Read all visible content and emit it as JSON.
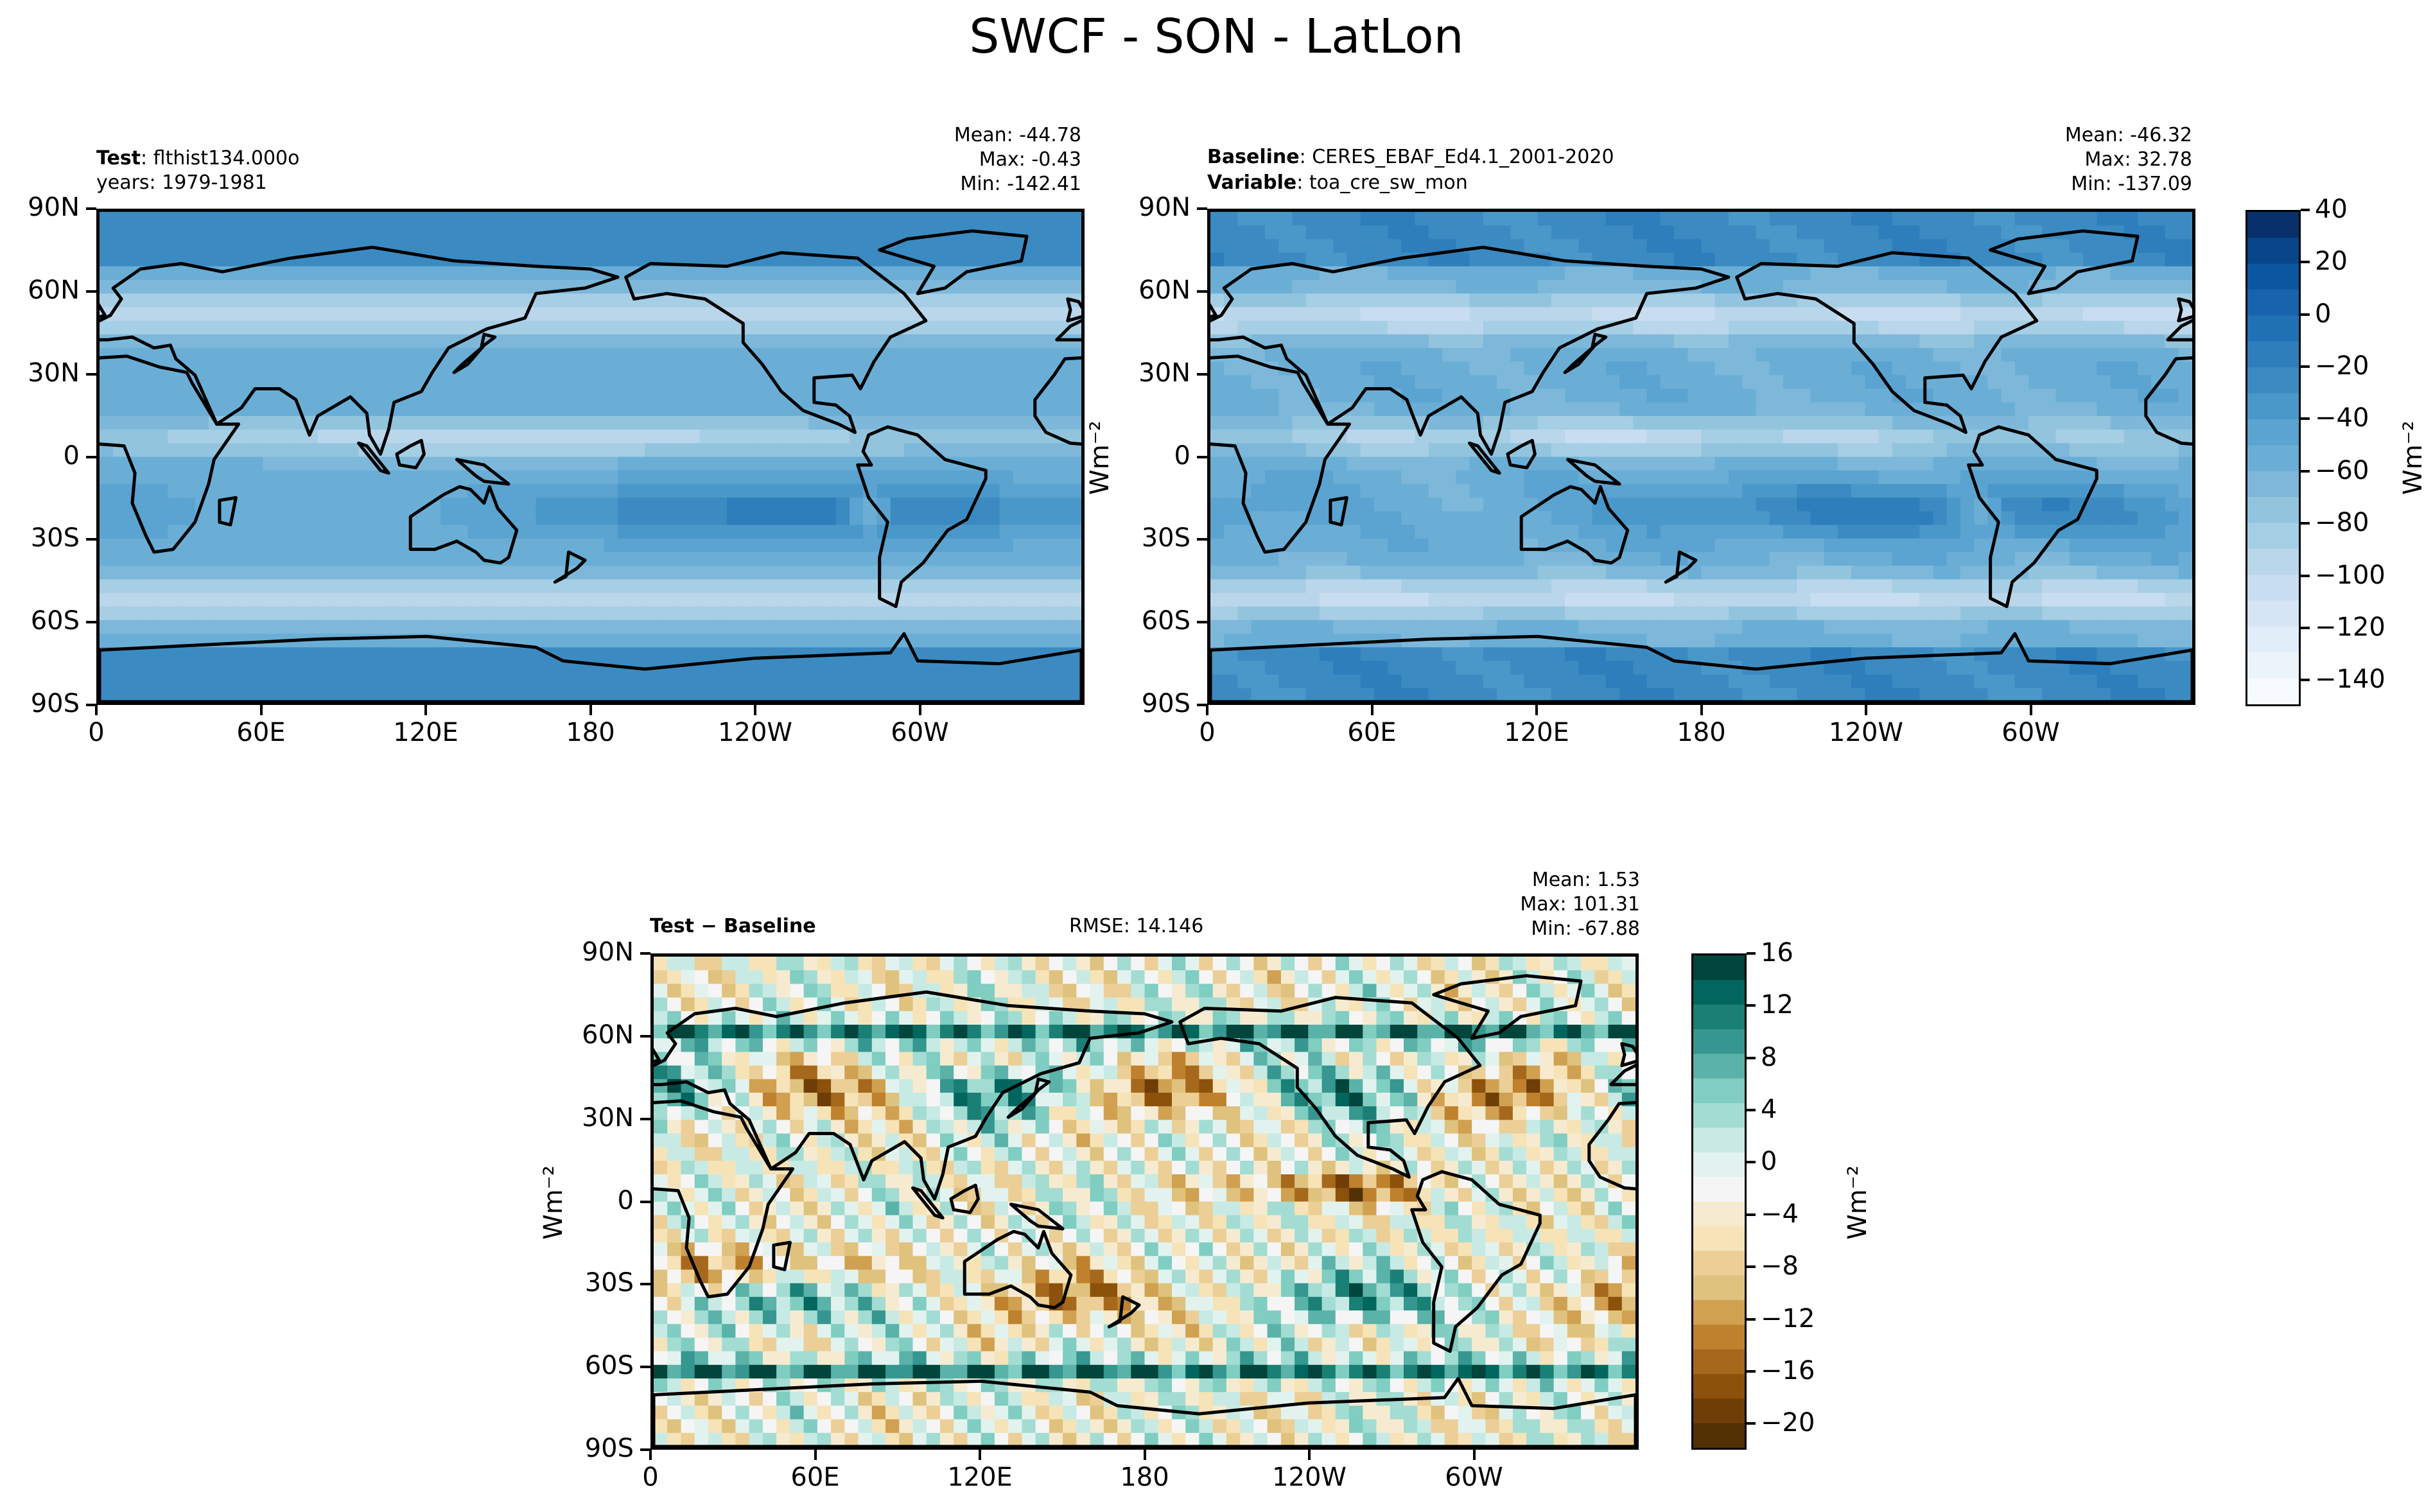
{
  "title": "SWCF - SON - LatLon",
  "units": "Wm⁻²",
  "panels": [
    {
      "id": "test",
      "line1_bold": "Test",
      "line1_text": ": flthist134.000o",
      "line2_bold": "",
      "line2_text": "years: 1979-1981",
      "stats": [
        "Mean: -44.78",
        "Max: -0.43",
        "Min: -142.41"
      ]
    },
    {
      "id": "baseline",
      "line1_bold": "Baseline",
      "line1_text": ": CERES_EBAF_Ed4.1_2001-2020",
      "line2_bold": "Variable",
      "line2_text": ": toa_cre_sw_mon",
      "stats": [
        "Mean: -46.32",
        "Max: 32.78",
        "Min: -137.09"
      ]
    },
    {
      "id": "diff",
      "line1_bold": "Test − Baseline",
      "line1_text": "",
      "rmse": "RMSE: 14.146",
      "stats": [
        "Mean:  1.53",
        "Max: 101.31",
        "Min: -67.88"
      ]
    }
  ],
  "lat_ticks": [
    "90N",
    "60N",
    "30N",
    "0",
    "30S",
    "60S",
    "90S"
  ],
  "lon_ticks": [
    "0",
    "60E",
    "120E",
    "180",
    "120W",
    "60W"
  ],
  "colorbar_main": {
    "labels": [
      "40",
      "20",
      "0",
      "−20",
      "−40",
      "−60",
      "−80",
      "−100",
      "−120",
      "−140"
    ],
    "colors": [
      "#08306b",
      "#08458a",
      "#0b579f",
      "#1764ad",
      "#2171b5",
      "#2e7ebc",
      "#3b8bc2",
      "#4a98c9",
      "#5ba3d0",
      "#6aaed6",
      "#7db8da",
      "#92c4de",
      "#a6cee4",
      "#bad6eb",
      "#c9ddf0",
      "#d5e5f4",
      "#e1edf8",
      "#ecf4fb",
      "#f7fbff"
    ]
  },
  "colorbar_diff": {
    "labels": [
      "16",
      "12",
      "8",
      "4",
      "0",
      "−4",
      "−8",
      "−12",
      "−16",
      "−20"
    ],
    "colors": [
      "#01453c",
      "#01665e",
      "#1a7f74",
      "#35978f",
      "#5ab2a8",
      "#80cdc1",
      "#a3dcd2",
      "#c7eae5",
      "#e2f3ef",
      "#f5f5f5",
      "#f6ebd0",
      "#f6e3b8",
      "#ebcf97",
      "#dfc27d",
      "#cfa151",
      "#bf812d",
      "#a5681c",
      "#8c510a",
      "#6e3e06",
      "#543005"
    ]
  }
}
